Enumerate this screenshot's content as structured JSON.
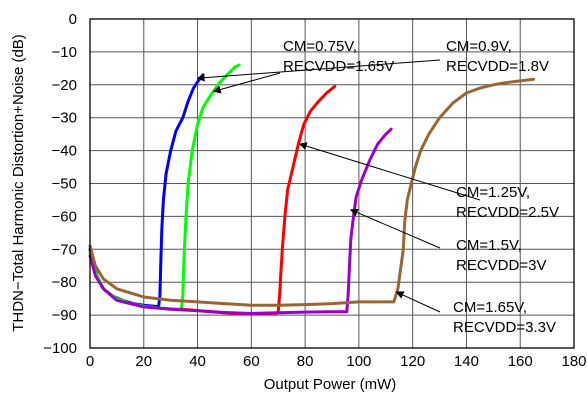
{
  "chart_data": {
    "type": "line",
    "xlabel": "Output Power (mW)",
    "ylabel": "THDN−Total Harmonic Distortion+Noise (dB)",
    "xlim": [
      0,
      180
    ],
    "ylim": [
      -100,
      0
    ],
    "xticks": [
      0,
      20,
      40,
      60,
      80,
      100,
      120,
      140,
      160,
      180
    ],
    "yticks": [
      0,
      -10,
      -20,
      -30,
      -40,
      -50,
      -60,
      -70,
      -80,
      -90,
      -100
    ],
    "grid": true,
    "series": [
      {
        "name": "CM=0.75V, RECVDD=1.65V",
        "color": "#0000ff",
        "points": [
          [
            0,
            -70
          ],
          [
            1,
            -74
          ],
          [
            3,
            -79
          ],
          [
            5,
            -82
          ],
          [
            8,
            -84
          ],
          [
            12,
            -85.5
          ],
          [
            16,
            -86.5
          ],
          [
            20,
            -87
          ],
          [
            24,
            -87.3
          ],
          [
            25.5,
            -87.5
          ],
          [
            26,
            -84
          ],
          [
            26.3,
            -75
          ],
          [
            26.7,
            -64
          ],
          [
            27.3,
            -55
          ],
          [
            28.3,
            -47
          ],
          [
            30,
            -40
          ],
          [
            32,
            -34
          ],
          [
            34.5,
            -30
          ],
          [
            36.5,
            -25
          ],
          [
            38.5,
            -21
          ],
          [
            40.5,
            -18.5
          ],
          [
            42,
            -17
          ]
        ]
      },
      {
        "name": "CM=0.9V, RECVDD=1.8V",
        "color": "#00ff00",
        "points": [
          [
            0,
            -71
          ],
          [
            2,
            -77
          ],
          [
            5,
            -82
          ],
          [
            10,
            -85
          ],
          [
            15,
            -86.5
          ],
          [
            20,
            -87.3
          ],
          [
            25,
            -87.8
          ],
          [
            30,
            -88.1
          ],
          [
            34,
            -88.2
          ],
          [
            34.5,
            -84
          ],
          [
            35,
            -72
          ],
          [
            35.7,
            -60
          ],
          [
            36.5,
            -50
          ],
          [
            38,
            -40
          ],
          [
            40,
            -32
          ],
          [
            42,
            -27
          ],
          [
            45,
            -23
          ],
          [
            48,
            -19.5
          ],
          [
            51,
            -17
          ],
          [
            54,
            -14.5
          ],
          [
            55.5,
            -14
          ]
        ]
      },
      {
        "name": "CM=1.25V, RECVDD=2.5V",
        "color": "#ff0000",
        "points": [
          [
            34,
            -88.2
          ],
          [
            40,
            -88.6
          ],
          [
            45,
            -89
          ],
          [
            50,
            -89.3
          ],
          [
            55,
            -89.6
          ],
          [
            60,
            -89.7
          ],
          [
            65,
            -89.6
          ],
          [
            69,
            -89.6
          ],
          [
            70,
            -89
          ],
          [
            70.5,
            -84
          ],
          [
            71,
            -77
          ],
          [
            71.5,
            -70
          ],
          [
            72.5,
            -60
          ],
          [
            73.5,
            -52
          ],
          [
            75.5,
            -45
          ],
          [
            77.5,
            -38
          ],
          [
            79.5,
            -32
          ],
          [
            82,
            -28
          ],
          [
            85,
            -25
          ],
          [
            88,
            -22.5
          ],
          [
            91,
            -20.5
          ]
        ]
      },
      {
        "name": "CM=1.5V, RECVDD=3V",
        "color": "#9900cc",
        "points": [
          [
            0,
            -72
          ],
          [
            2,
            -78
          ],
          [
            5,
            -82
          ],
          [
            10,
            -85.5
          ],
          [
            20,
            -87.5
          ],
          [
            30,
            -88.2
          ],
          [
            40,
            -88.7
          ],
          [
            50,
            -89.2
          ],
          [
            60,
            -89.5
          ],
          [
            70,
            -89.3
          ],
          [
            80,
            -89.1
          ],
          [
            90,
            -89
          ],
          [
            95.5,
            -89
          ],
          [
            96,
            -84
          ],
          [
            96.5,
            -75
          ],
          [
            97,
            -67
          ],
          [
            98,
            -60
          ],
          [
            99,
            -54
          ],
          [
            101,
            -49
          ],
          [
            104,
            -43
          ],
          [
            107,
            -38
          ],
          [
            110,
            -35
          ],
          [
            112,
            -33.5
          ]
        ]
      },
      {
        "name": "CM=1.65V, RECVDD=3.3V",
        "color": "#996633",
        "points": [
          [
            0,
            -69
          ],
          [
            2,
            -75
          ],
          [
            5,
            -79
          ],
          [
            10,
            -82
          ],
          [
            20,
            -84.5
          ],
          [
            30,
            -85.5
          ],
          [
            40,
            -86
          ],
          [
            50,
            -86.5
          ],
          [
            60,
            -87
          ],
          [
            70,
            -87
          ],
          [
            80,
            -86.8
          ],
          [
            90,
            -86.5
          ],
          [
            100,
            -86
          ],
          [
            110,
            -86
          ],
          [
            113,
            -86
          ],
          [
            114.5,
            -82
          ],
          [
            115.5,
            -76
          ],
          [
            116.5,
            -70
          ],
          [
            117,
            -62
          ],
          [
            118,
            -55
          ],
          [
            119.5,
            -50
          ],
          [
            121,
            -45
          ],
          [
            123,
            -40
          ],
          [
            126,
            -35
          ],
          [
            130,
            -30
          ],
          [
            135,
            -25.5
          ],
          [
            140,
            -22.5
          ],
          [
            145,
            -21
          ],
          [
            150,
            -20
          ],
          [
            155,
            -19.3
          ],
          [
            160,
            -18.8
          ],
          [
            165,
            -18.3
          ]
        ]
      }
    ],
    "annotations": [
      {
        "line1": "CM=0.75V,",
        "line2": "RECVDD=1.65V",
        "arrow_to": [
          46,
          -22
        ]
      },
      {
        "line1": "CM=0.9V,",
        "line2": "RECVDD=1.8V",
        "arrow_to": [
          40,
          -18
        ]
      },
      {
        "line1": "CM=1.25V,",
        "line2": "RECVDD=2.5V",
        "arrow_to": [
          78,
          -38
        ]
      },
      {
        "line1": "CM=1.5V,",
        "line2": "RECVDD=3V",
        "arrow_to": [
          97,
          -58
        ]
      },
      {
        "line1": "CM=1.65V,",
        "line2": "RECVDD=3.3V",
        "arrow_to": [
          114,
          -83
        ]
      }
    ]
  }
}
